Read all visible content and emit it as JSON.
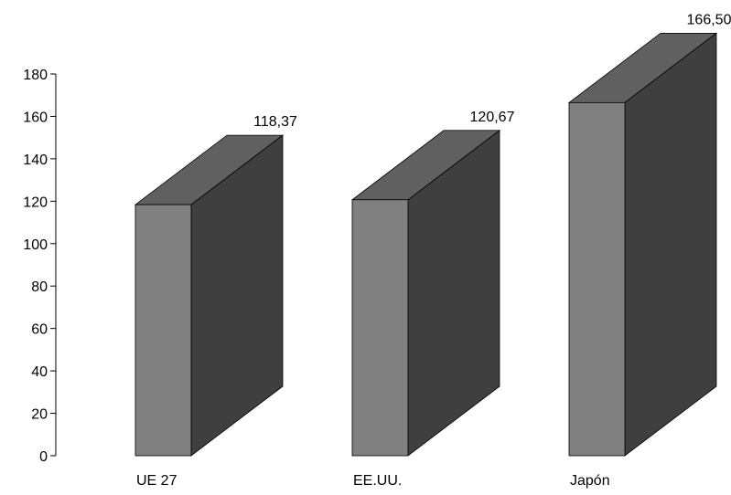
{
  "chart_data": {
    "type": "bar",
    "style": "3d-box",
    "categories": [
      "UE 27",
      "EE.UU.",
      "Japón"
    ],
    "values": [
      118.37,
      120.67,
      166.5
    ],
    "value_labels": [
      "118,37",
      "120,67",
      "166,50"
    ],
    "yticks": [
      "0",
      "20",
      "40",
      "60",
      "80",
      "100",
      "120",
      "140",
      "160",
      "180"
    ],
    "ylim": [
      0,
      180
    ],
    "grid": false,
    "legend": "none",
    "colors": {
      "front": "#808080",
      "side": "#3f3f3f",
      "top": "#606060",
      "edge": "#000000"
    }
  }
}
